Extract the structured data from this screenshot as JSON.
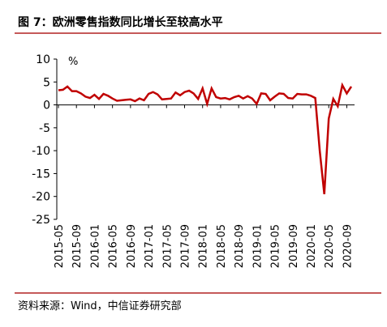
{
  "chart_data": {
    "type": "line",
    "title": "图 7：欧洲零售指数同比增长至较高水平",
    "unit": "%",
    "source": "资料来源：Wind，中信证券研究部",
    "categories": [
      "2015-05",
      null,
      null,
      null,
      "2015-09",
      null,
      null,
      null,
      "2016-01",
      null,
      null,
      null,
      "2016-05",
      null,
      null,
      null,
      "2016-09",
      null,
      null,
      null,
      "2017-01",
      null,
      null,
      null,
      "2017-05",
      null,
      null,
      null,
      "2017-09",
      null,
      null,
      null,
      "2018-01",
      null,
      null,
      null,
      "2018-05",
      null,
      null,
      null,
      "2018-09",
      null,
      null,
      null,
      "2019-01",
      null,
      null,
      null,
      "2019-05",
      null,
      null,
      null,
      "2019-09",
      null,
      null,
      null,
      "2020-01",
      null,
      null,
      null,
      "2020-05",
      null,
      null,
      null,
      "2020-09",
      null
    ],
    "series": [
      {
        "color": "#c00000",
        "values": [
          3.2,
          3.3,
          4.0,
          3.0,
          3.0,
          2.5,
          1.8,
          1.5,
          2.2,
          1.3,
          2.4,
          2.0,
          1.4,
          0.9,
          1.0,
          1.1,
          1.2,
          0.8,
          1.4,
          1.0,
          2.4,
          2.8,
          2.3,
          1.2,
          1.3,
          1.4,
          2.7,
          2.1,
          2.8,
          3.1,
          2.5,
          1.3,
          3.6,
          0.2,
          3.6,
          1.7,
          1.4,
          1.5,
          1.2,
          1.7,
          2.0,
          1.4,
          1.9,
          1.4,
          0.2,
          2.5,
          2.4,
          1.0,
          1.8,
          2.5,
          2.4,
          1.5,
          1.4,
          2.4,
          2.3,
          2.3,
          2.0,
          1.5,
          -10.0,
          -19.5,
          -3.0,
          1.3,
          -0.3,
          4.3,
          2.5,
          4.0
        ]
      }
    ],
    "ylim": [
      -25,
      10
    ],
    "yticks": [
      -25,
      -20,
      -15,
      -10,
      -5,
      0,
      5,
      10
    ]
  }
}
